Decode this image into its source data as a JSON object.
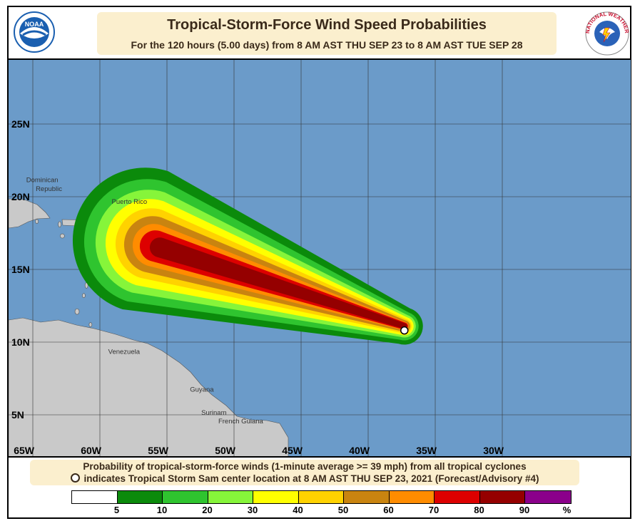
{
  "title": "Tropical-Storm-Force Wind Speed Probabilities",
  "subtitle": "For the 120 hours (5.00 days) from 8 AM AST THU SEP 23 to 8 AM AST TUE SEP 28",
  "logos": {
    "left": {
      "text": "NOAA",
      "color": "#1a5fb0"
    },
    "right": {
      "text": "NATIONAL WEATHER SERVICE",
      "color": "#c8102e"
    }
  },
  "map": {
    "ocean_color": "#6b9bc9",
    "land_color": "#c9c9c9",
    "lat_labels": [
      {
        "label": "25N",
        "lat": 25
      },
      {
        "label": "20N",
        "lat": 20
      },
      {
        "label": "15N",
        "lat": 15
      },
      {
        "label": "10N",
        "lat": 10
      },
      {
        "label": "5N",
        "lat": 5
      }
    ],
    "lon_labels": [
      {
        "label": "65W",
        "lon": -65
      },
      {
        "label": "60W",
        "lon": -60
      },
      {
        "label": "55W",
        "lon": -55
      },
      {
        "label": "50W",
        "lon": -50
      },
      {
        "label": "45W",
        "lon": -45
      },
      {
        "label": "40W",
        "lon": -40
      },
      {
        "label": "35W",
        "lon": -35
      },
      {
        "label": "30W",
        "lon": -30
      }
    ],
    "places": [
      "Dominican",
      "Republic",
      "Puerto Rico",
      "Venezuela",
      "Guyana",
      "Surinam",
      "French Guiana"
    ],
    "storm_center": {
      "lat": 10.8,
      "lon": -37.3,
      "name": "Tropical Storm Sam"
    }
  },
  "footer": {
    "line1": "Probability of tropical-storm-force winds (1-minute average >= 39 mph) from all tropical cyclones",
    "line2": "indicates Tropical Storm Sam center location at 8 AM AST THU SEP 23, 2021 (Forecast/Advisory #4)"
  },
  "legend": {
    "colors": [
      "#ffffff",
      "#0b8a0b",
      "#2fc42f",
      "#86f53a",
      "#ffff00",
      "#ffd200",
      "#c98410",
      "#ff8c00",
      "#dd0000",
      "#950000",
      "#8b008b"
    ],
    "labels": [
      "5",
      "10",
      "20",
      "30",
      "40",
      "50",
      "60",
      "70",
      "80",
      "90",
      "%"
    ]
  }
}
